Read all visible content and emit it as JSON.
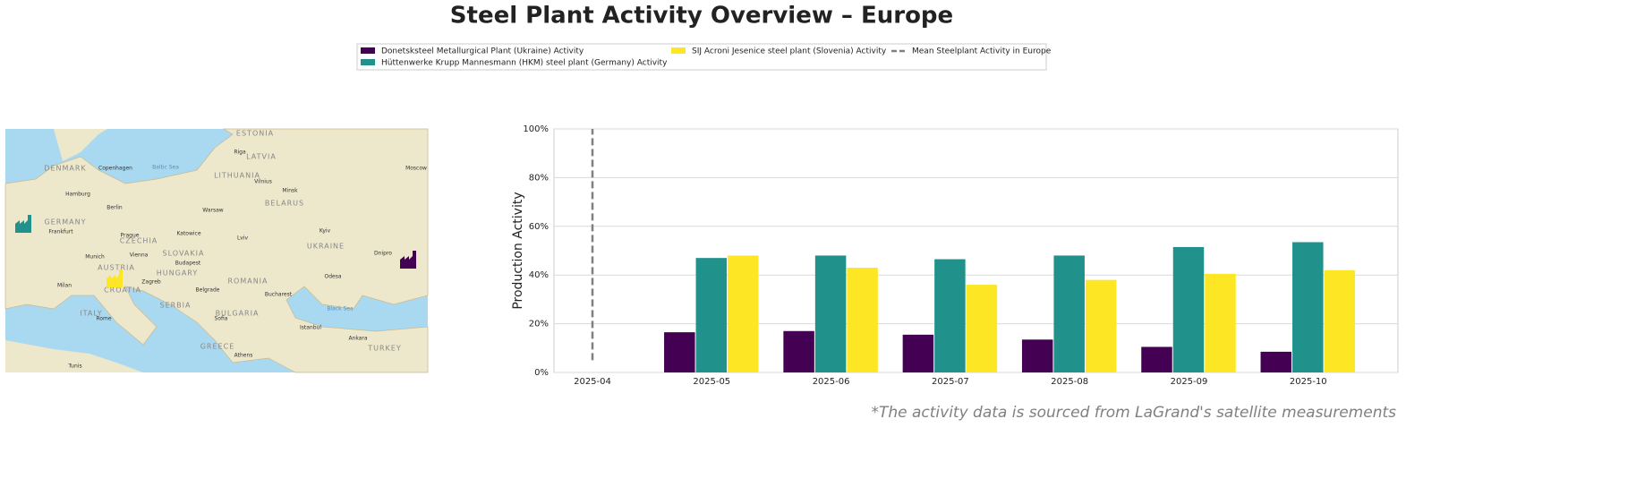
{
  "title": "Steel Plant Activity Overview – Europe",
  "footnote": "*The activity data is sourced from LaGrand's satellite measurements",
  "map": {
    "labels": [
      "ESTONIA",
      "LATVIA",
      "LITHUANIA",
      "BELARUS",
      "DENMARK",
      "GERMANY",
      "CZECHIA",
      "SLOVAKIA",
      "AUSTRIA",
      "HUNGARY",
      "ROMANIA",
      "UKRAINE",
      "SERBIA",
      "BULGARIA",
      "CROATIA",
      "ITALY",
      "GREECE",
      "TURKEY",
      "Copenhagen",
      "Hamburg",
      "Berlin",
      "Warsaw",
      "Minsk",
      "Riga",
      "Vilnius",
      "Kyiv",
      "Lviv",
      "Prague",
      "Vienna",
      "Budapest",
      "Bucharest",
      "Belgrade",
      "Sofia",
      "Istanbul",
      "Ankara",
      "Athens",
      "Odesa",
      "Dnipro",
      "Munich",
      "Milan",
      "Zagreb",
      "Rome",
      "Moscow",
      "Frankfurt",
      "Katowice",
      "Tunis",
      "Black Sea",
      "Baltic Sea"
    ]
  },
  "chart_data": {
    "type": "bar",
    "ylabel": "Production Activity",
    "categories": [
      "2025-04",
      "2025-05",
      "2025-06",
      "2025-07",
      "2025-08",
      "2025-09",
      "2025-10"
    ],
    "series": [
      {
        "name": "Donetsksteel Metallurgical Plant (Ukraine) Activity",
        "color": "#440154",
        "values": [
          null,
          16.5,
          17,
          15.5,
          13.5,
          10.5,
          8.5
        ]
      },
      {
        "name": "Hüttenwerke Krupp Mannesmann (HKM) steel plant (Germany) Activity",
        "color": "#21918c",
        "values": [
          null,
          47,
          48,
          46.5,
          48,
          51.5,
          53.5
        ]
      },
      {
        "name": "SIJ Acroni Jesenice steel plant (Slovenia) Activity",
        "color": "#fde725",
        "values": [
          null,
          48,
          43,
          36,
          38,
          40.5,
          42
        ]
      }
    ],
    "mean_line": {
      "name": "Mean Steelplant Activity in Europe",
      "color": "#808080",
      "x": "2025-04",
      "values": [
        5,
        100
      ]
    },
    "ylim": [
      0,
      100
    ],
    "yticks": [
      {
        "value": 0,
        "label": "0%"
      },
      {
        "value": 20,
        "label": "20%"
      },
      {
        "value": 40,
        "label": "40%"
      },
      {
        "value": 60,
        "label": "60%"
      },
      {
        "value": 80,
        "label": "80%"
      },
      {
        "value": 100,
        "label": "100%"
      }
    ],
    "grid": true
  }
}
